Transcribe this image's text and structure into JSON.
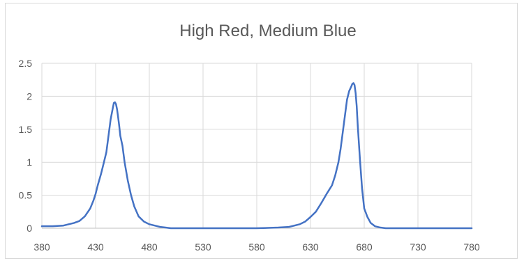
{
  "chart_data": {
    "type": "line",
    "title": "High Red, Medium Blue",
    "xlabel": "",
    "ylabel": "",
    "xlim": [
      380,
      780
    ],
    "ylim": [
      0,
      2.5
    ],
    "x_ticks": [
      "380",
      "430",
      "480",
      "530",
      "580",
      "630",
      "680",
      "730",
      "780"
    ],
    "y_ticks": [
      "0",
      "0.5",
      "1",
      "1.5",
      "2",
      "2.5"
    ],
    "grid": {
      "vertical": true,
      "horizontal": true
    },
    "legend": "none",
    "series": [
      {
        "color": "#4472c4",
        "x": [
          380,
          390,
          400,
          405,
          410,
          415,
          420,
          425,
          428,
          430,
          432,
          435,
          437,
          440,
          442,
          444,
          446,
          447,
          448,
          449,
          450,
          451,
          452,
          453,
          455,
          457,
          460,
          463,
          466,
          470,
          475,
          480,
          485,
          490,
          495,
          500,
          520,
          550,
          580,
          600,
          610,
          620,
          625,
          630,
          635,
          640,
          645,
          650,
          653,
          656,
          658,
          660,
          662,
          664,
          666,
          668,
          669,
          670,
          671,
          672,
          673,
          674,
          676,
          678,
          680,
          683,
          686,
          690,
          695,
          700,
          710,
          730,
          780
        ],
        "y": [
          0.03,
          0.03,
          0.04,
          0.06,
          0.08,
          0.11,
          0.18,
          0.3,
          0.42,
          0.52,
          0.65,
          0.82,
          0.95,
          1.15,
          1.4,
          1.65,
          1.82,
          1.9,
          1.91,
          1.88,
          1.8,
          1.68,
          1.55,
          1.4,
          1.25,
          1.0,
          0.72,
          0.5,
          0.33,
          0.18,
          0.1,
          0.06,
          0.04,
          0.02,
          0.01,
          0.0,
          0.0,
          0.0,
          0.0,
          0.01,
          0.02,
          0.06,
          0.1,
          0.17,
          0.25,
          0.38,
          0.52,
          0.65,
          0.8,
          1.0,
          1.2,
          1.45,
          1.7,
          1.95,
          2.08,
          2.15,
          2.19,
          2.2,
          2.17,
          2.05,
          1.85,
          1.55,
          1.05,
          0.6,
          0.3,
          0.17,
          0.08,
          0.03,
          0.01,
          0.0,
          0.0,
          0.0,
          0.0
        ]
      }
    ]
  }
}
